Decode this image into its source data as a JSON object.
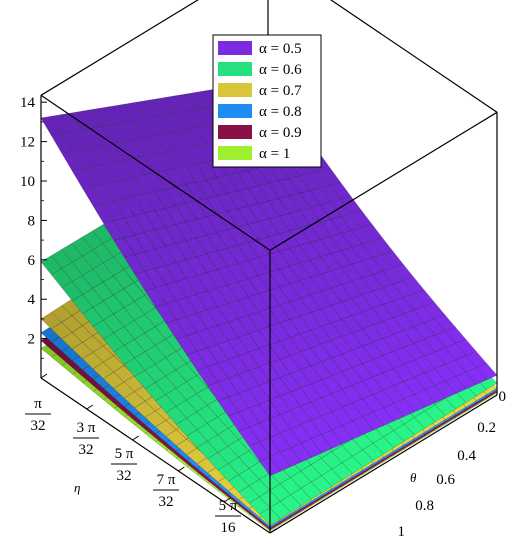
{
  "chart_data": {
    "type": "surface3d",
    "x_axis": {
      "label": "θ",
      "ticks": [
        "0",
        "0.2",
        "0.4",
        "0.6",
        "0.8",
        "1"
      ],
      "range": [
        0,
        1
      ]
    },
    "y_axis": {
      "label": "η",
      "range_fraction_of_pi": [
        0.0,
        0.3125
      ],
      "ticks": [
        {
          "num": "π",
          "den": "32"
        },
        {
          "num": "3 π",
          "den": "32"
        },
        {
          "num": "5 π",
          "den": "32"
        },
        {
          "num": "7 π",
          "den": "32"
        },
        {
          "num": "5 π",
          "den": "16"
        }
      ]
    },
    "z_axis": {
      "ticks": [
        "2",
        "4",
        "6",
        "8",
        "10",
        "12",
        "14"
      ],
      "range": [
        0,
        14
      ]
    },
    "legend_position": "top-center",
    "series": [
      {
        "name": "α = 0.5",
        "color": "#7b2be0",
        "corners": {
          "t0_e0": 8.1,
          "t1_e0": 1.0,
          "t0_e1": 13.2,
          "t1_e1": 2.9
        }
      },
      {
        "name": "α = 0.6",
        "color": "#25e07e",
        "corners": {
          "t0_e0": 5.8,
          "t1_e0": 0.6,
          "t0_e1": 5.9,
          "t1_e1": 0.4
        }
      },
      {
        "name": "α = 0.7",
        "color": "#d9c43a",
        "corners": {
          "t0_e0": 3.4,
          "t1_e0": 0.35,
          "t0_e1": 3.0,
          "t1_e1": 0.35
        }
      },
      {
        "name": "α = 0.8",
        "color": "#1e8cf2",
        "corners": {
          "t0_e0": 2.5,
          "t1_e0": 0.25,
          "t0_e1": 2.3,
          "t1_e1": 0.25
        }
      },
      {
        "name": "α = 0.9",
        "color": "#8a1048",
        "corners": {
          "t0_e0": 2.0,
          "t1_e0": 0.15,
          "t0_e1": 1.9,
          "t1_e1": 0.15
        }
      },
      {
        "name": "α = 1",
        "color": "#9ef02e",
        "corners": {
          "t0_e0": 1.6,
          "t1_e0": 0.1,
          "t0_e1": 1.5,
          "t1_e1": 0.1
        }
      }
    ]
  }
}
